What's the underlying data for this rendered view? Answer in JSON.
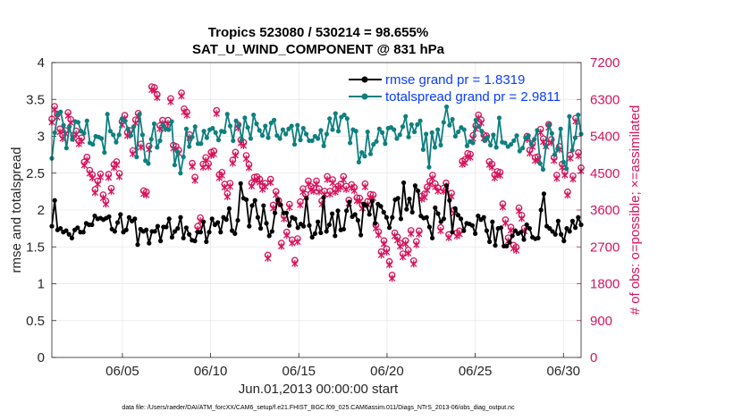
{
  "chart_data": {
    "type": "line",
    "title": "Tropics 523080 / 530214 = 98.655%",
    "subtitle": "SAT_U_WIND_COMPONENT @ 831 hPa",
    "xlabel": "Jun.01,2013 00:00:00 start",
    "ylabel_left": "rmse and totalspread",
    "ylabel_right": "# of obs: o=possible; ×=assimilated",
    "footer": "data file: /Users/raeder/DAI/ATM_forcXX/CAM6_setup/f.e21.FHIST_BGC.f09_025.CAM6assim.011/Diags_NTrS_2013-06/obs_diag_output.nc",
    "x_range": [
      1,
      31
    ],
    "x_tick_days": [
      5,
      10,
      15,
      20,
      25,
      30
    ],
    "x_tick_labels": [
      "06/05",
      "06/10",
      "06/15",
      "06/20",
      "06/25",
      "06/30"
    ],
    "ylim_left": [
      0,
      4
    ],
    "y_ticks_left": [
      "0",
      "0.5",
      "1",
      "1.5",
      "2",
      "2.5",
      "3",
      "3.5",
      "4"
    ],
    "ylim_right": [
      0,
      7200
    ],
    "y_ticks_right": [
      "0",
      "900",
      "1800",
      "2700",
      "3600",
      "4500",
      "5400",
      "6300",
      "7200"
    ],
    "legend": {
      "position": "top-right",
      "entries": [
        "rmse grand pr = 1.8319",
        "totalspread grand pr = 2.9811"
      ]
    },
    "series": [
      {
        "name": "rmse",
        "color": "#000000",
        "values": [
          1.78,
          2.13,
          1.73,
          1.75,
          1.7,
          1.72,
          1.67,
          1.62,
          1.73,
          1.76,
          1.7,
          1.7,
          1.82,
          1.8,
          1.8,
          1.92,
          1.88,
          1.89,
          1.87,
          1.89,
          1.91,
          1.74,
          1.71,
          1.83,
          1.94,
          1.7,
          1.73,
          1.9,
          1.85,
          1.88,
          1.53,
          1.74,
          1.71,
          1.73,
          1.55,
          1.71,
          1.71,
          1.78,
          1.58,
          1.77,
          1.77,
          1.88,
          1.63,
          1.71,
          1.75,
          1.9,
          1.62,
          1.76,
          1.67,
          1.59,
          1.58,
          1.7,
          1.7,
          1.84,
          1.57,
          1.7,
          1.88,
          1.8,
          1.83,
          1.7,
          1.9,
          1.87,
          2.02,
          1.72,
          1.68,
          1.86,
          2.36,
          2.16,
          2.14,
          1.78,
          2.06,
          2.13,
          1.9,
          1.75,
          2.06,
          1.82,
          1.65,
          1.71,
          1.96,
          2.14,
          2.07,
          1.96,
          1.96,
          1.79,
          1.9,
          1.88,
          1.76,
          1.81,
          1.78,
          2.16,
          1.79,
          1.63,
          1.68,
          1.84,
          1.69,
          2.17,
          1.71,
          1.8,
          1.95,
          1.65,
          1.99,
          1.73,
          1.74,
          1.99,
          2.11,
          1.91,
          1.94,
          1.86,
          1.66,
          2.08,
          2.06,
          1.94,
          2.12,
          1.82,
          2.08,
          2.05,
          1.97,
          1.9,
          1.76,
          1.9,
          2.14,
          2.16,
          1.88,
          2.37,
          2.01,
          2.15,
          1.97,
          2.33,
          2.26,
          1.92,
          1.89,
          1.9,
          1.77,
          1.62,
          2.03,
          1.95,
          1.84,
          1.88,
          2.33,
          2.13,
          1.7,
          2.02,
          1.93,
          1.88,
          1.72,
          1.82,
          1.81,
          1.79,
          1.68,
          1.92,
          1.87,
          1.9,
          1.72,
          1.57,
          1.84,
          1.52,
          1.75,
          1.76,
          1.51,
          1.51,
          1.56,
          1.65,
          1.72,
          1.68,
          1.7,
          1.6,
          1.8,
          1.75,
          1.63,
          1.61,
          1.62,
          2.0,
          2.22,
          1.78,
          1.75,
          1.71,
          1.67,
          1.85,
          1.67,
          1.58,
          1.75,
          1.71,
          1.85,
          1.76,
          1.9,
          1.8
        ]
      },
      {
        "name": "totalspread",
        "color": "#0f7f7f",
        "values": [
          2.7,
          3.05,
          3.3,
          3.33,
          3.15,
          2.84,
          3.13,
          2.96,
          3.2,
          3.19,
          3.07,
          3.04,
          3.21,
          2.91,
          2.89,
          3.0,
          2.99,
          2.97,
          2.78,
          3.3,
          3.07,
          3.02,
          2.92,
          3.02,
          3.24,
          3.21,
          3.1,
          3.01,
          3.13,
          2.72,
          3.3,
          3.02,
          2.67,
          2.63,
          2.96,
          3.17,
          2.85,
          2.94,
          3.16,
          3.1,
          3.09,
          3.2,
          2.61,
          2.79,
          2.5,
          2.72,
          3.1,
          2.86,
          2.99,
          3.13,
          2.9,
          2.9,
          3.07,
          2.98,
          3.09,
          3.11,
          3.05,
          2.95,
          3.07,
          3.06,
          3.3,
          3.14,
          2.94,
          3.21,
          3.15,
          2.95,
          3.25,
          3.12,
          2.97,
          3.29,
          3.17,
          3.08,
          3.01,
          3.14,
          2.98,
          3.18,
          3.22,
          3.01,
          2.97,
          3.09,
          3.03,
          3.1,
          3.14,
          2.89,
          3.15,
          2.95,
          3.11,
          3.03,
          2.94,
          2.94,
          3.0,
          2.97,
          3.08,
          2.87,
          3.03,
          3.24,
          3.09,
          3.31,
          3.07,
          3.26,
          3.29,
          3.24,
          2.91,
          3.09,
          3.07,
          2.65,
          2.78,
          2.73,
          3.06,
          2.76,
          2.89,
          2.93,
          3.1,
          3.05,
          2.9,
          3.11,
          3.12,
          3.09,
          2.97,
          3.02,
          3.13,
          3.27,
          2.99,
          3.16,
          3.06,
          3.16,
          3.21,
          2.82,
          3.03,
          2.58,
          3.05,
          2.85,
          3.09,
          2.88,
          3.19,
          3.4,
          3.15,
          3.23,
          3.0,
          3.06,
          3.12,
          3.09,
          2.87,
          2.93,
          2.91,
          3.22,
          3.13,
          3.07,
          2.94,
          2.99,
          2.88,
          3.02,
          2.85,
          3.25,
          2.92,
          2.91,
          2.86,
          2.89,
          2.94,
          3.01,
          2.8,
          2.84,
          2.98,
          3.01,
          2.89,
          2.96,
          3.08,
          2.63,
          2.55,
          2.86,
          3.16,
          3.04,
          2.75,
          2.83,
          3.1,
          2.65,
          2.56,
          3.27,
          2.81,
          2.98,
          3.29,
          3.03
        ]
      }
    ],
    "obs_possible_color": "#d6145c",
    "obs_possible": [
      5820,
      6130,
      5940,
      5580,
      5420,
      5540,
      5980,
      5810,
      5420,
      5530,
      5290,
      5360,
      4770,
      4890,
      4570,
      4460,
      4100,
      4310,
      4480,
      3970,
      3820,
      4470,
      4130,
      4710,
      4780,
      4490,
      5760,
      5910,
      5490,
      5540,
      5050,
      5800,
      5960,
      5210,
      4070,
      4040,
      5160,
      6610,
      6590,
      6420,
      5660,
      5790,
      5660,
      5790,
      6320,
      5180,
      5150,
      5060,
      6460,
      6070,
      5990,
      5440,
      4740,
      4400,
      3200,
      3410,
      4720,
      4880,
      4730,
      5010,
      5040,
      6030,
      4460,
      4520,
      4230,
      4000,
      4250,
      4820,
      5010,
      5680,
      5310,
      5250,
      4930,
      4710,
      4260,
      4400,
      4410,
      4350,
      4180,
      4250,
      2500,
      4350,
      3720,
      4050,
      3830,
      2790,
      3460,
      3060,
      3740,
      2870,
      2370,
      2900,
      3800,
      4120,
      3980,
      4310,
      4170,
      4130,
      4310,
      4120,
      3820,
      4060,
      4420,
      4060,
      4340,
      4110,
      4180,
      4230,
      4420,
      4180,
      3840,
      4220,
      4150,
      3900,
      3890,
      3720,
      4240,
      3810,
      3980,
      3970,
      3230,
      3070,
      2580,
      2850,
      2650,
      2340,
      2010,
      3040,
      2940,
      2790,
      2530,
      2850,
      2620,
      3100,
      2360,
      2830,
      3090,
      3940,
      3990,
      4160,
      4300,
      4450,
      4240,
      4140,
      3170,
      4130,
      4260,
      3000,
      4010,
      3600,
      3040,
      3090,
      4790,
      4830,
      4980,
      4960,
      5420,
      5660,
      5920,
      5800,
      5430,
      5410,
      4780,
      4720,
      4460,
      4540,
      4520,
      3750,
      3360,
      2920,
      3180,
      2740,
      2690,
      3650,
      3470,
      3160,
      5400,
      5060,
      5220,
      4880,
      4900,
      5570,
      5340,
      5230,
      5690,
      5320,
      4880,
      4450,
      5150,
      4720,
      4530,
      4040,
      4940,
      4430,
      5840,
      5000,
      4630
    ]
  }
}
